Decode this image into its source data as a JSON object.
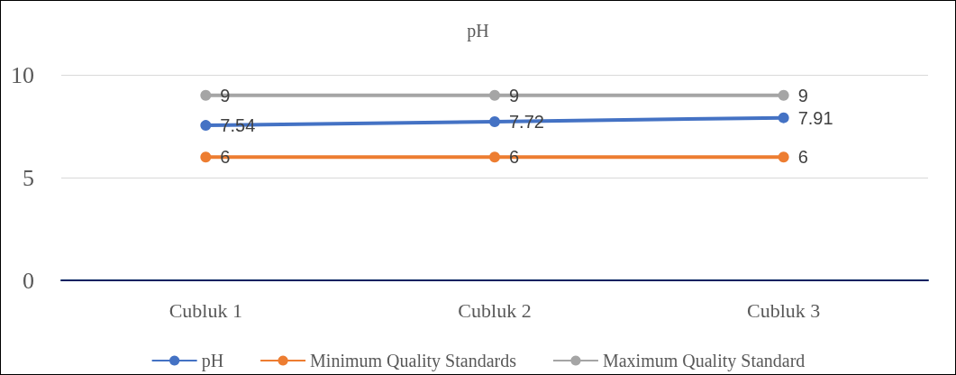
{
  "chart_data": {
    "type": "line",
    "title": "pH",
    "categories": [
      "Cubluk 1",
      "Cubluk 2",
      "Cubluk 3"
    ],
    "series": [
      {
        "name": "pH",
        "color": "#4472c4",
        "values": [
          7.54,
          7.72,
          7.91
        ]
      },
      {
        "name": "Minimum Quality Standards",
        "color": "#ed7d31",
        "values": [
          6,
          6,
          6
        ]
      },
      {
        "name": "Maximum Quality Standard",
        "color": "#a5a5a5",
        "values": [
          9,
          9,
          9
        ]
      }
    ],
    "ylim": [
      0,
      10
    ],
    "yticks": [
      0,
      5,
      10
    ],
    "grid": "y",
    "legend": "bottom",
    "marker": "circle",
    "data_labels": true
  }
}
